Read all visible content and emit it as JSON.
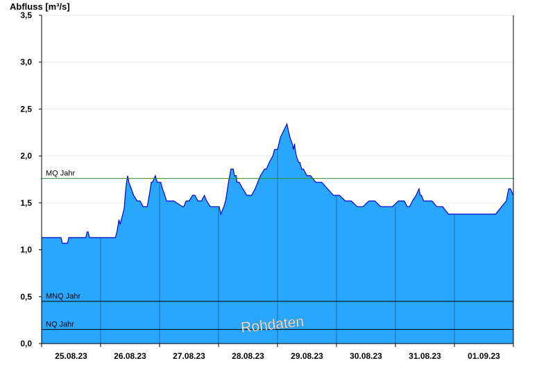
{
  "chart_data": {
    "type": "area",
    "ylabel": "Abfluss [m³/s]",
    "ylim": [
      0,
      3.5
    ],
    "yticks": [
      "0,0",
      "0,5",
      "1,0",
      "1,5",
      "2,0",
      "2,5",
      "3,0",
      "3,5"
    ],
    "xlim_days": [
      0,
      8
    ],
    "x_unit": "days since 25.08.23 00:00",
    "xtick_labels": [
      "25.08.23",
      "26.08.23",
      "27.08.23",
      "28.08.23",
      "29.08.23",
      "30.08.23",
      "31.08.23",
      "01.09.23"
    ],
    "grid": "horizontal",
    "colors": {
      "fill": "#29a7ff",
      "line": "#0000d0",
      "mq": "#2e8b2e",
      "ref": "#000000"
    },
    "reference_lines": [
      {
        "name": "MQ Jahr",
        "value": 1.76,
        "color": "#2e8b2e"
      },
      {
        "name": "MNQ Jahr",
        "value": 0.45,
        "color": "#000000"
      },
      {
        "name": "NQ Jahr",
        "value": 0.15,
        "color": "#000000"
      }
    ],
    "series": [
      {
        "name": "Abfluss",
        "x": [
          0,
          0.33,
          0.35,
          0.44,
          0.46,
          0.75,
          0.77,
          0.79,
          0.81,
          1.25,
          1.28,
          1.31,
          1.33,
          1.36,
          1.38,
          1.4,
          1.42,
          1.44,
          1.46,
          1.48,
          1.52,
          1.56,
          1.62,
          1.67,
          1.72,
          1.79,
          1.83,
          1.86,
          1.88,
          1.93,
          1.96,
          2.02,
          2.05,
          2.09,
          2.12,
          2.18,
          2.24,
          2.39,
          2.41,
          2.45,
          2.5,
          2.56,
          2.6,
          2.65,
          2.71,
          2.76,
          2.8,
          2.86,
          2.91,
          2.96,
          3.01,
          3.04,
          3.09,
          3.12,
          3.14,
          3.17,
          3.21,
          3.25,
          3.27,
          3.3,
          3.31,
          3.35,
          3.41,
          3.48,
          3.52,
          3.56,
          3.62,
          3.71,
          3.78,
          3.81,
          3.86,
          3.92,
          3.95,
          4.0,
          4.05,
          4.16,
          4.21,
          4.25,
          4.27,
          4.29,
          4.3,
          4.32,
          4.36,
          4.38,
          4.41,
          4.44,
          4.5,
          4.56,
          4.65,
          4.75,
          4.85,
          4.95,
          5.05,
          5.15,
          5.25,
          5.35,
          5.45,
          5.55,
          5.65,
          5.75,
          5.85,
          5.95,
          6.05,
          6.15,
          6.2,
          6.24,
          6.29,
          6.35,
          6.4,
          6.42,
          6.44,
          6.48,
          6.53,
          6.58,
          6.62,
          6.7,
          6.8,
          6.9,
          7.0,
          7.1,
          7.2,
          7.3,
          7.4,
          7.5,
          7.6,
          7.7,
          7.8,
          7.88,
          7.92,
          7.95,
          8.0
        ],
        "y": [
          1.13,
          1.13,
          1.07,
          1.07,
          1.13,
          1.13,
          1.19,
          1.19,
          1.13,
          1.13,
          1.2,
          1.32,
          1.27,
          1.34,
          1.39,
          1.44,
          1.6,
          1.72,
          1.79,
          1.72,
          1.65,
          1.58,
          1.52,
          1.52,
          1.46,
          1.46,
          1.6,
          1.72,
          1.72,
          1.79,
          1.72,
          1.72,
          1.65,
          1.58,
          1.52,
          1.52,
          1.52,
          1.46,
          1.46,
          1.52,
          1.52,
          1.58,
          1.58,
          1.52,
          1.52,
          1.58,
          1.52,
          1.46,
          1.46,
          1.46,
          1.46,
          1.38,
          1.46,
          1.52,
          1.6,
          1.72,
          1.86,
          1.86,
          1.79,
          1.79,
          1.72,
          1.72,
          1.65,
          1.58,
          1.58,
          1.58,
          1.65,
          1.79,
          1.86,
          1.86,
          1.93,
          2.0,
          2.07,
          2.07,
          2.2,
          2.34,
          2.2,
          2.13,
          2.07,
          2.13,
          2.07,
          2.0,
          1.93,
          1.93,
          1.86,
          1.86,
          1.79,
          1.79,
          1.72,
          1.72,
          1.65,
          1.58,
          1.58,
          1.52,
          1.52,
          1.46,
          1.46,
          1.52,
          1.52,
          1.46,
          1.46,
          1.46,
          1.52,
          1.52,
          1.46,
          1.46,
          1.52,
          1.58,
          1.65,
          1.58,
          1.58,
          1.52,
          1.52,
          1.52,
          1.52,
          1.46,
          1.46,
          1.38,
          1.38,
          1.38,
          1.38,
          1.38,
          1.38,
          1.38,
          1.38,
          1.38,
          1.46,
          1.52,
          1.65,
          1.65,
          1.58
        ]
      }
    ],
    "watermark": "Rohdaten"
  }
}
